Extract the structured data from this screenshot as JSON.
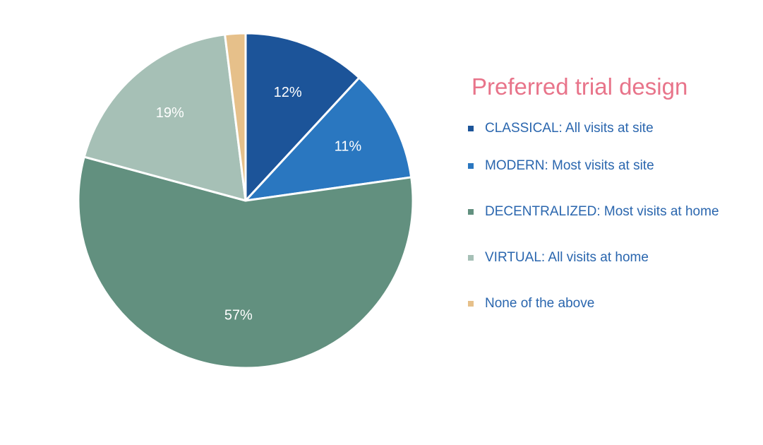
{
  "chart_data": {
    "type": "pie",
    "title": "",
    "legend_title": "Preferred trial design",
    "legend_position": "right",
    "categories": [
      "CLASSICAL: All visits at site",
      "MODERN: Most visits at site",
      "DECENTRALIZED: Most visits at home",
      "VIRTUAL: All visits at home",
      "None of the above"
    ],
    "values": [
      12,
      11,
      57,
      19,
      2
    ],
    "data_labels": [
      "12%",
      "11%",
      "57%",
      "19%",
      ""
    ],
    "colors": [
      "#1c5499",
      "#2a77c0",
      "#62907f",
      "#a6c0b6",
      "#e6c08a"
    ]
  }
}
